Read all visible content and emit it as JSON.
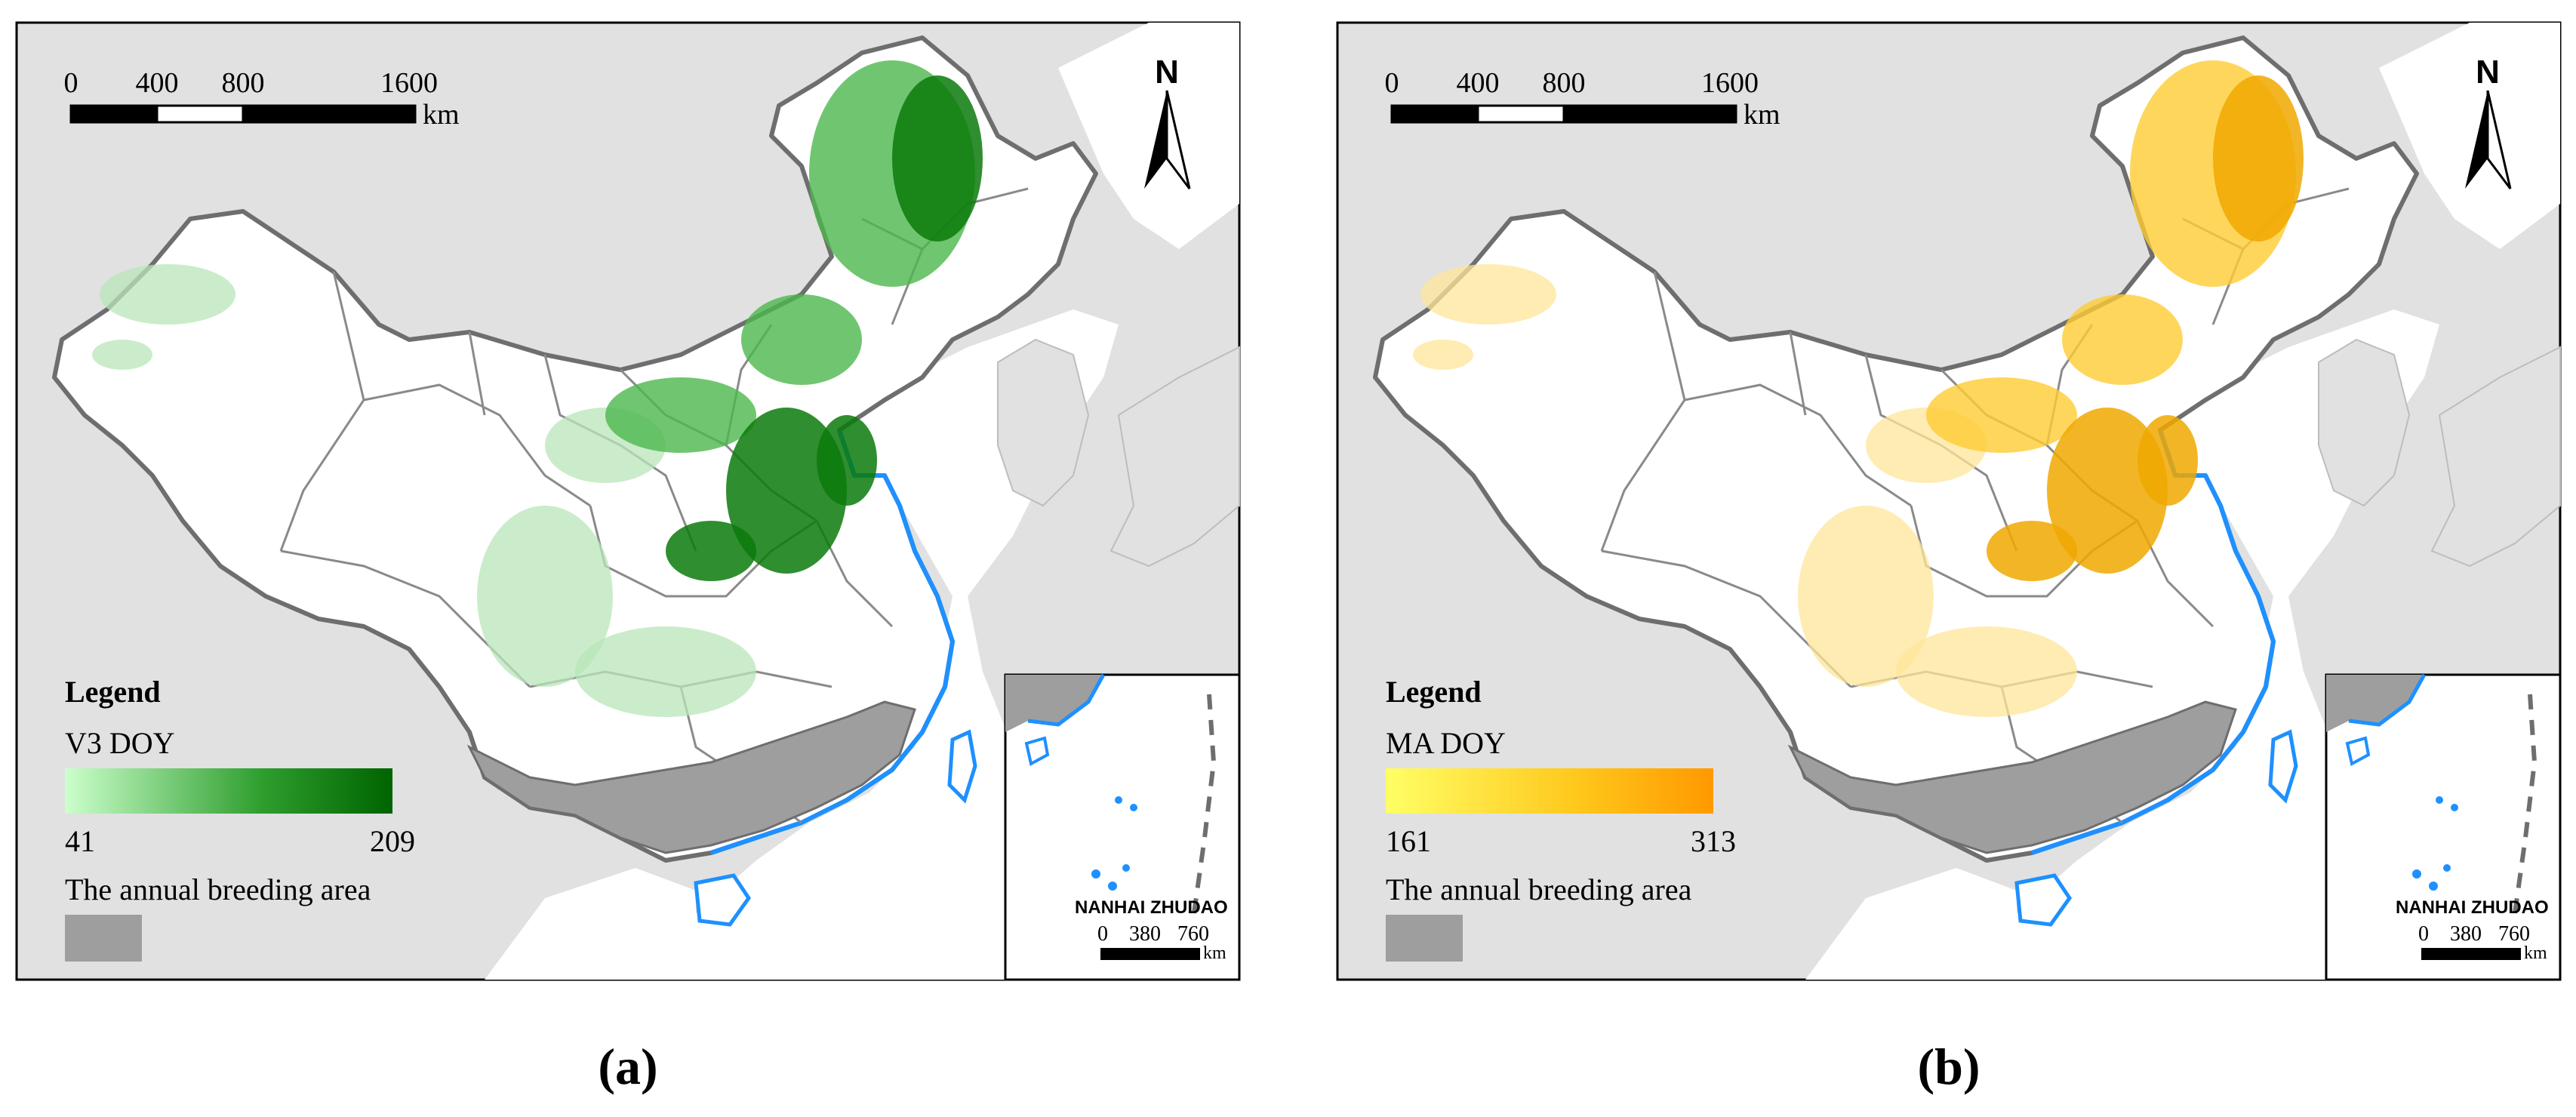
{
  "panels": [
    {
      "caption": "(a)",
      "scalebar": {
        "ticks": [
          "0",
          "400",
          "800",
          "1600"
        ],
        "unit": "km"
      },
      "north_label": "N",
      "legend": {
        "title": "Legend",
        "variable": "V3 DOY",
        "min": "41",
        "max": "209",
        "ramp_colors": [
          "#ccffcc",
          "#2e9e2e",
          "#006400"
        ],
        "breeding_label": "The annual breeding area",
        "breeding_color": "#9e9e9e"
      },
      "inset": {
        "title": "NANHAI ZHUDAO",
        "scalebar_ticks": [
          "0",
          "380",
          "760"
        ],
        "unit": "km"
      },
      "crop_color_light": "#b8e6b8",
      "crop_color_mid": "#4cb84c",
      "crop_color_dark": "#0a7a0a"
    },
    {
      "caption": "(b)",
      "scalebar": {
        "ticks": [
          "0",
          "400",
          "800",
          "1600"
        ],
        "unit": "km"
      },
      "north_label": "N",
      "legend": {
        "title": "Legend",
        "variable": "MA DOY",
        "min": "161",
        "max": "313",
        "ramp_colors": [
          "#ffff66",
          "#ffc61a",
          "#ff9900"
        ],
        "breeding_label": "The annual breeding area",
        "breeding_color": "#9e9e9e"
      },
      "inset": {
        "title": "NANHAI ZHUDAO",
        "scalebar_ticks": [
          "0",
          "380",
          "760"
        ],
        "unit": "km"
      },
      "crop_color_light": "#ffe699",
      "crop_color_mid": "#ffcc33",
      "crop_color_dark": "#f0a800"
    }
  ],
  "colors": {
    "background_land": "#e1e1e1",
    "sea": "#ffffff",
    "china": "#ffffff",
    "border": "#6e6e6e",
    "coast": "#1e90ff"
  }
}
